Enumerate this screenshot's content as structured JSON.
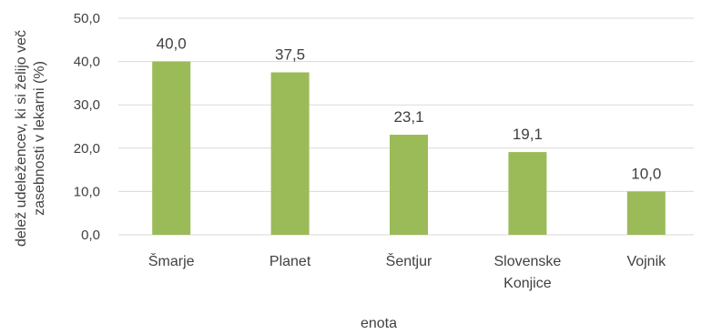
{
  "chart_data": {
    "type": "bar",
    "categories": [
      [
        "Šmarje"
      ],
      [
        "Planet"
      ],
      [
        "Šentjur"
      ],
      [
        "Slovenske",
        "Konjice"
      ],
      [
        "Vojnik"
      ]
    ],
    "values": [
      40.0,
      37.5,
      23.1,
      19.1,
      10.0
    ],
    "value_labels": [
      "40,0",
      "37,5",
      "23,1",
      "19,1",
      "10,0"
    ],
    "xlabel": "enota",
    "ylabel": [
      "delež udeležencev, ki si želijo več",
      "zasebnosti v lekarni (%)"
    ],
    "ylim": [
      0,
      50
    ],
    "yticks": [
      {
        "value": 0,
        "label": "0,0"
      },
      {
        "value": 10,
        "label": "10,0"
      },
      {
        "value": 20,
        "label": "20,0"
      },
      {
        "value": 30,
        "label": "30,0"
      },
      {
        "value": 40,
        "label": "40,0"
      },
      {
        "value": 50,
        "label": "50,0"
      }
    ],
    "grid": true,
    "bar_color": "#9BBB59",
    "grid_color": "#D9D9D9"
  }
}
